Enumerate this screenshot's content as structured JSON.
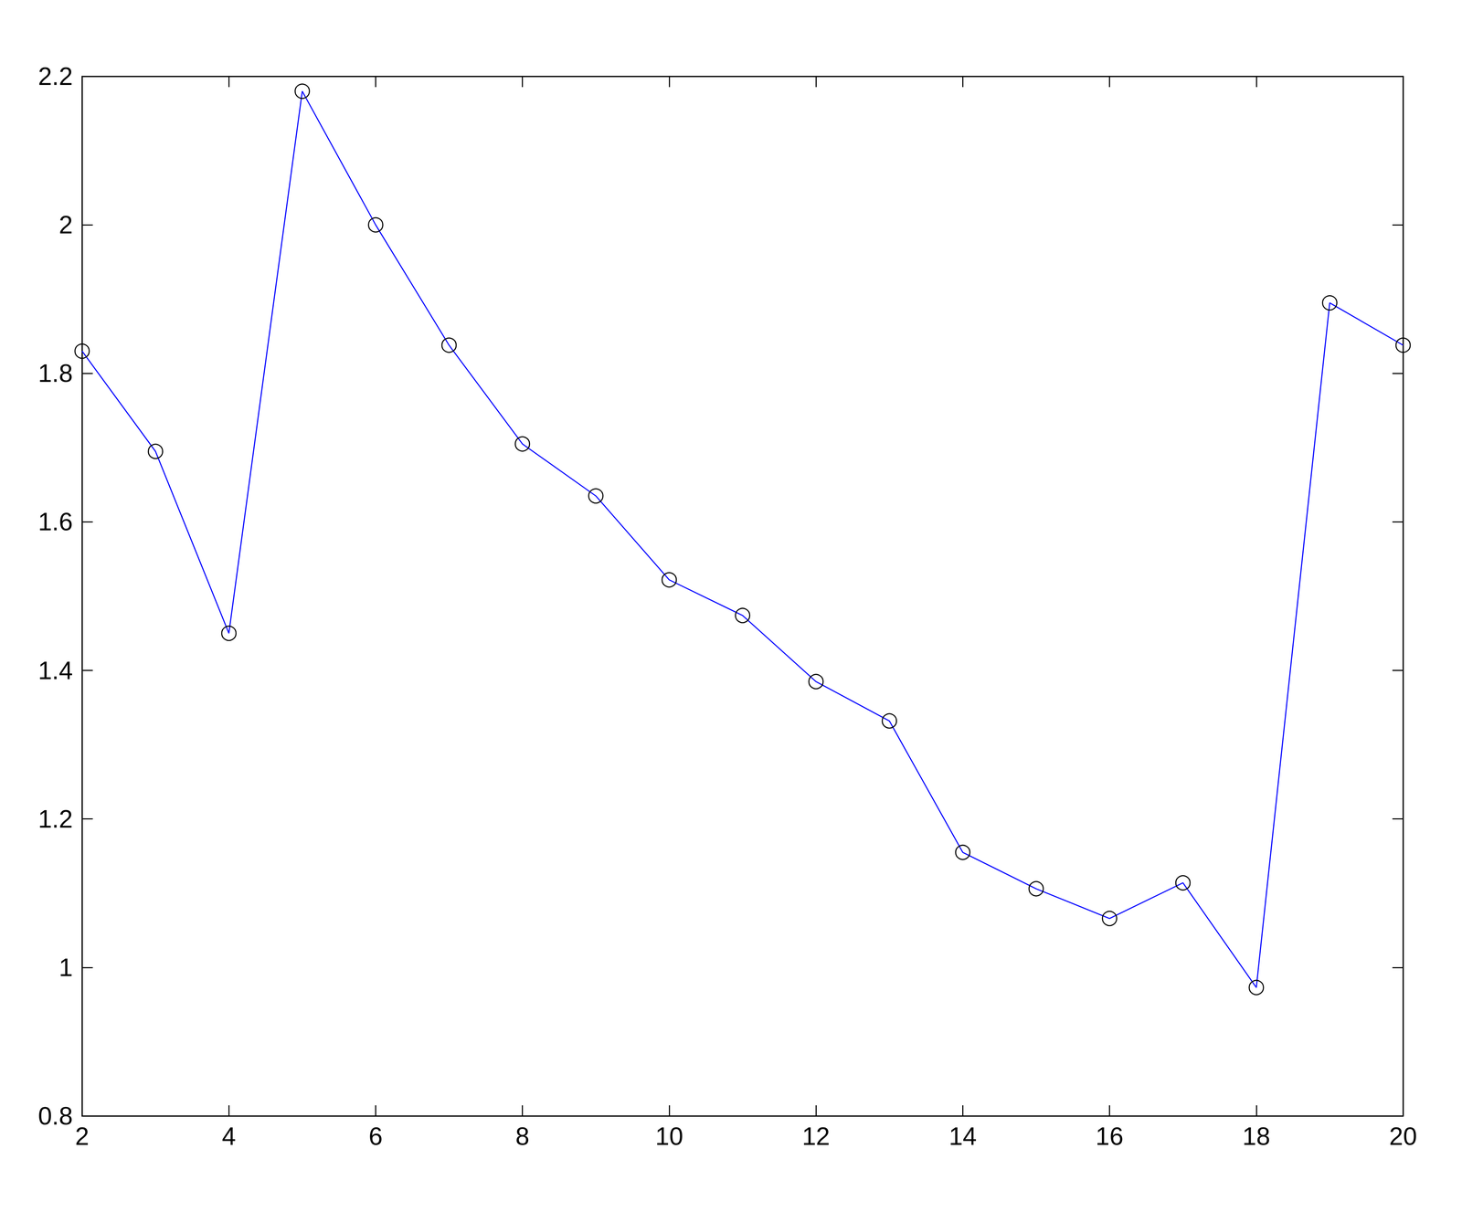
{
  "chart_data": {
    "type": "line",
    "x": [
      2,
      3,
      4,
      5,
      6,
      7,
      8,
      9,
      10,
      11,
      12,
      13,
      14,
      15,
      16,
      17,
      18,
      19,
      20
    ],
    "values": [
      1.83,
      1.695,
      1.45,
      2.18,
      2.0,
      1.838,
      1.705,
      1.635,
      1.522,
      1.474,
      1.385,
      1.332,
      1.155,
      1.106,
      1.066,
      1.114,
      0.973,
      1.895,
      1.838
    ],
    "color": "#0000ff",
    "marker": "circle",
    "line_style": "solid",
    "xlim": [
      2,
      20
    ],
    "xticks": [
      2,
      4,
      6,
      8,
      10,
      12,
      14,
      16,
      18,
      20
    ],
    "ylim": [
      0.8,
      2.2
    ],
    "yticks": [
      0.8,
      1,
      1.2,
      1.4,
      1.6,
      1.8,
      2,
      2.2
    ],
    "grid": false
  }
}
